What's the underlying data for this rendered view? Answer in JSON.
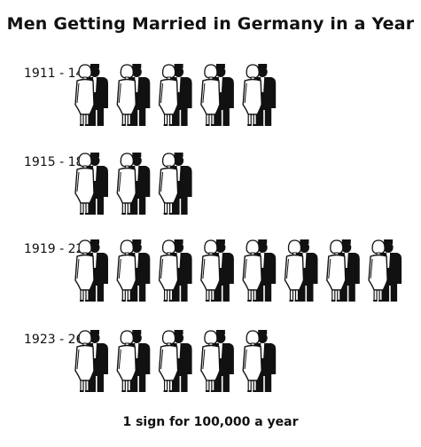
{
  "chart_data": {
    "type": "pictogram",
    "title": "Men Getting Married in Germany in a Year",
    "note": "1 sign for 100,000 a year",
    "unit_value": 100000,
    "icon": "couple-icon",
    "colors": {
      "bride": "#ffffff",
      "groom": "#111111",
      "outline": "#111111"
    },
    "categories": [
      "1911 - 14",
      "1915 - 18",
      "1919 - 22",
      "1923 - 26"
    ],
    "values": [
      500000,
      300000,
      800000,
      500000
    ],
    "signs": [
      5,
      3,
      8,
      5
    ]
  }
}
